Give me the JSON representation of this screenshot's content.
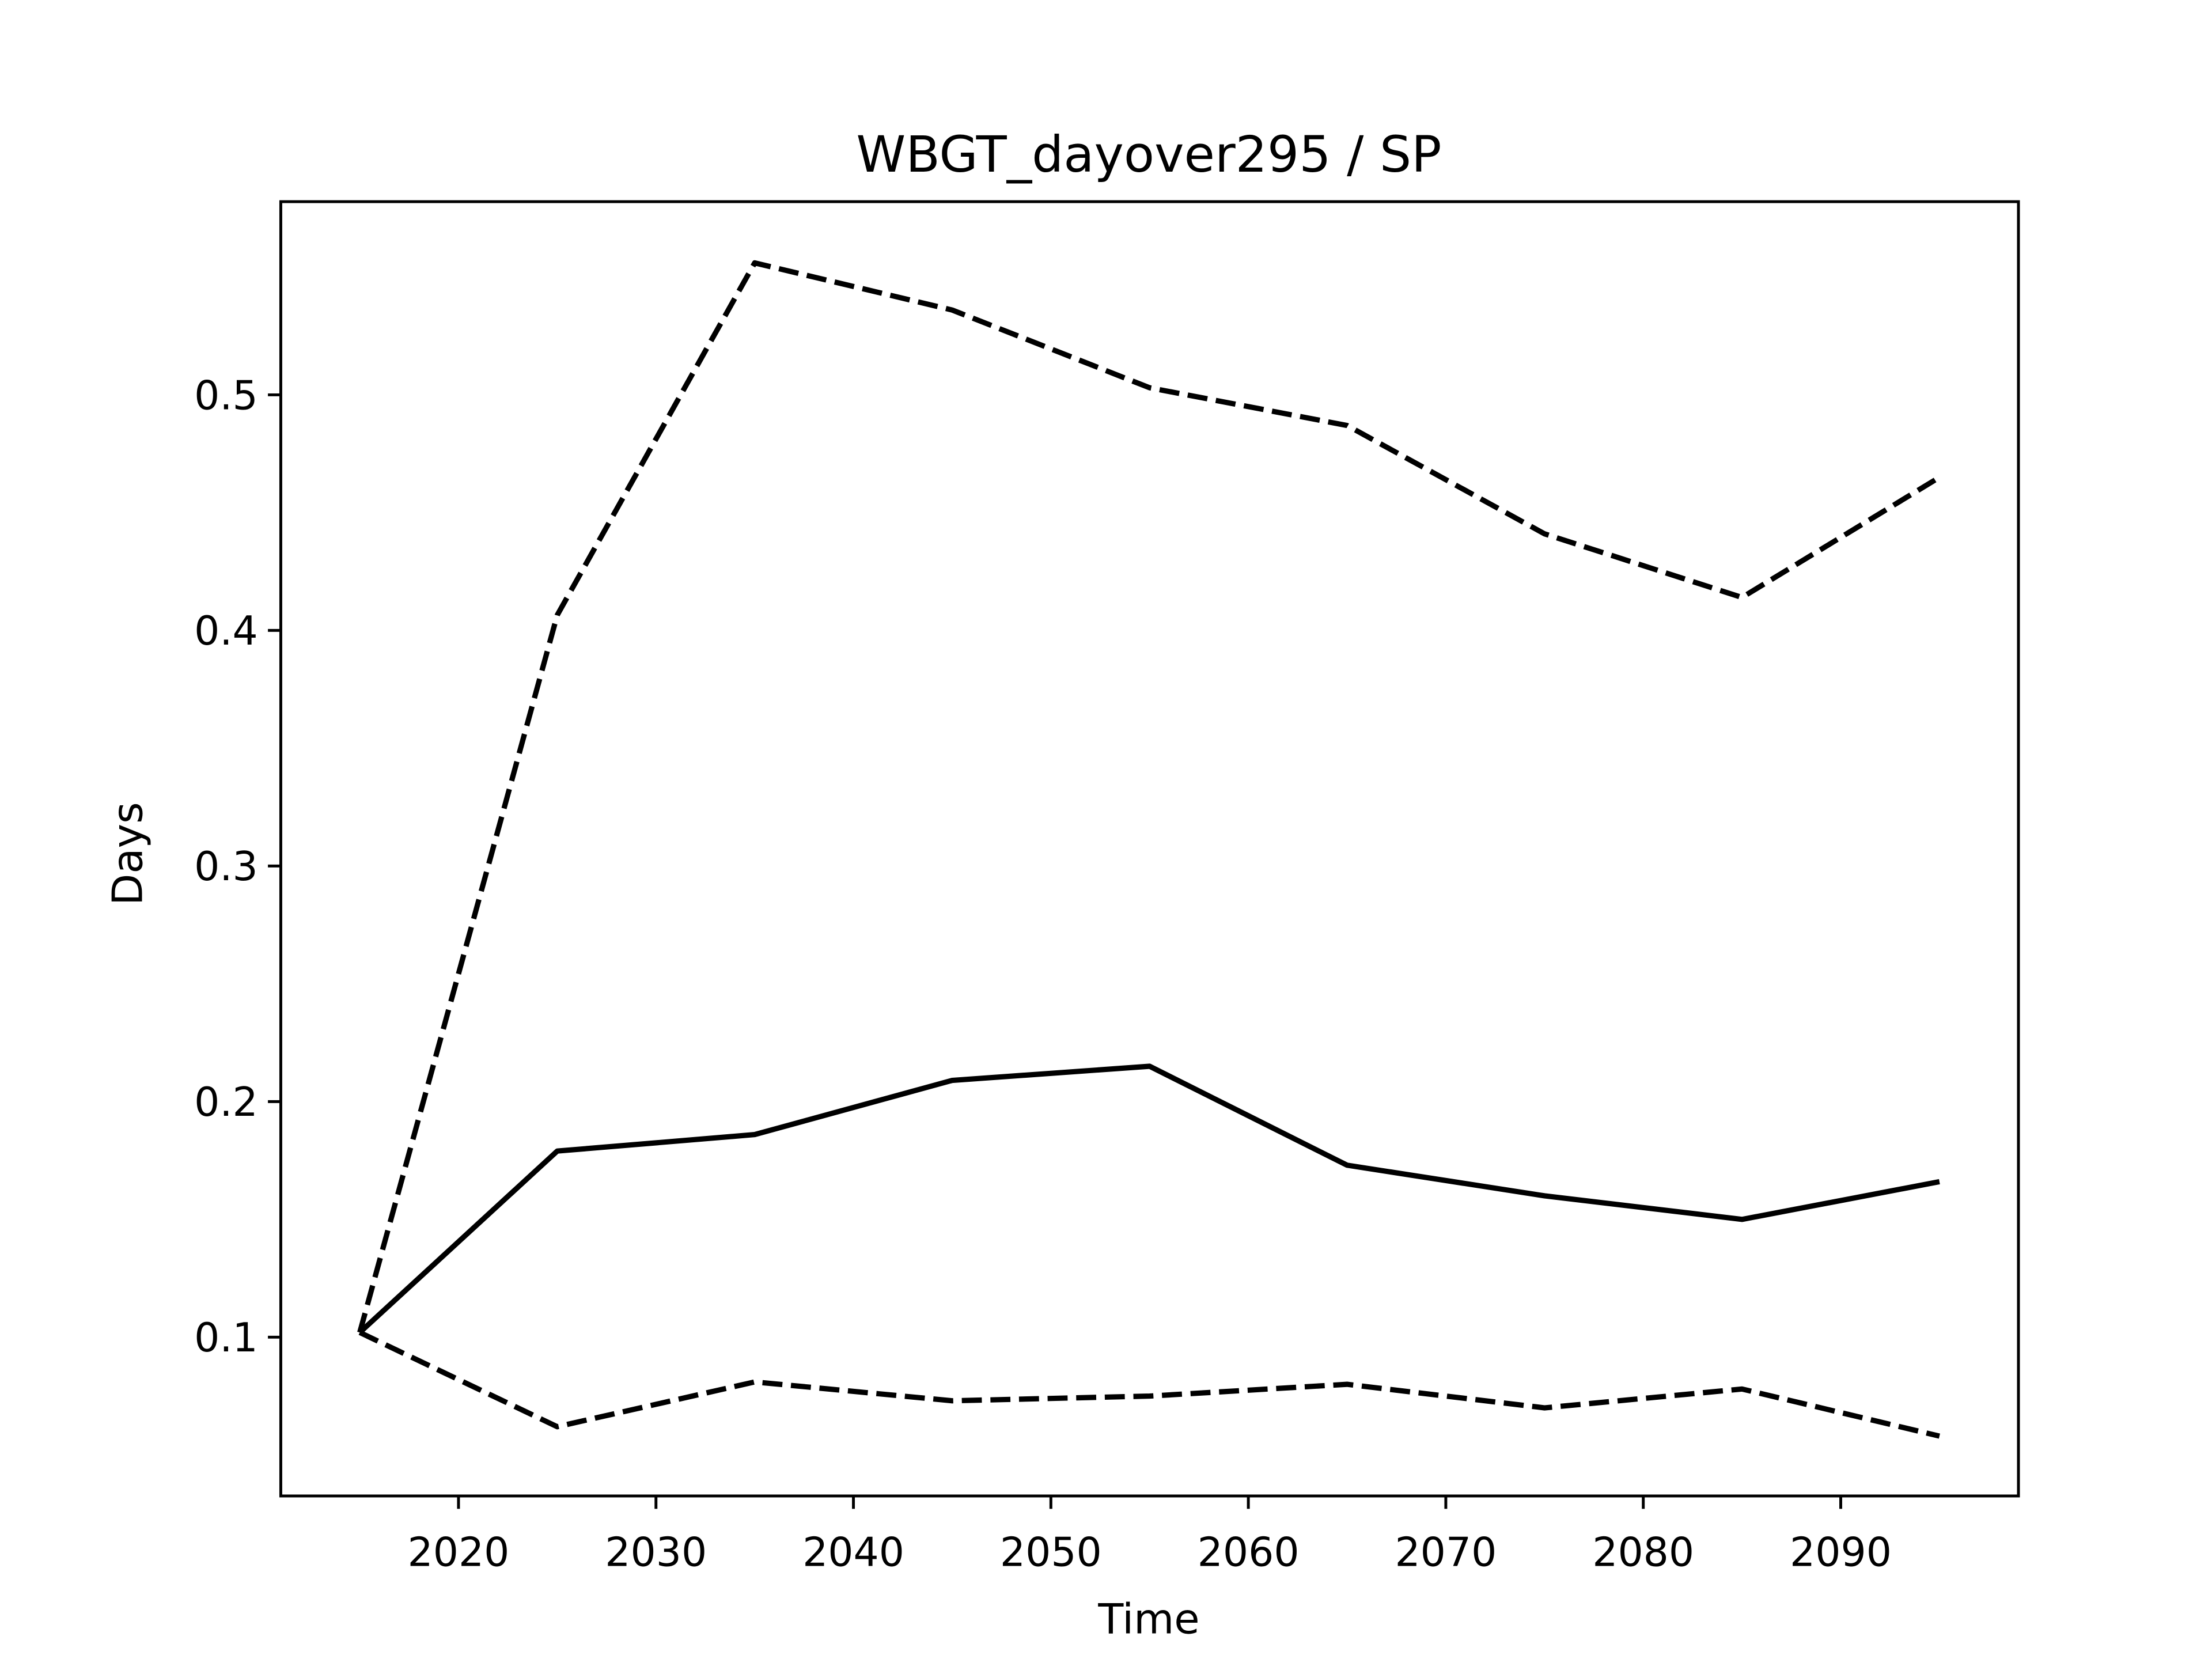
{
  "chart_data": {
    "type": "line",
    "title": "WBGT_dayover295 / SP",
    "x_label": "Time",
    "y_label": "Days",
    "x": [
      2015,
      2025,
      2035,
      2045,
      2055,
      2065,
      2075,
      2085,
      2095
    ],
    "series": [
      {
        "color": "#000000",
        "linestyle": "solid",
        "values": [
          0.102,
          0.179,
          0.186,
          0.209,
          0.215,
          0.173,
          0.16,
          0.15,
          0.166
        ]
      },
      {
        "color": "#000000",
        "linestyle": "dashed",
        "values": [
          0.102,
          0.4065,
          0.556,
          0.536,
          0.503,
          0.487,
          0.441,
          0.414,
          0.465
        ]
      },
      {
        "color": "#000000",
        "linestyle": "dashed",
        "values": [
          0.102,
          0.062,
          0.081,
          0.073,
          0.075,
          0.08,
          0.07,
          0.078,
          0.058
        ]
      }
    ],
    "xlim": [
      2011,
      2099
    ],
    "xticks": [
      2020,
      2030,
      2040,
      2050,
      2060,
      2070,
      2080,
      2090
    ],
    "ylim": [
      0.0326,
      0.582
    ],
    "yticks": [
      0.1,
      0.2,
      0.3,
      0.4,
      0.5
    ],
    "grid": false
  }
}
